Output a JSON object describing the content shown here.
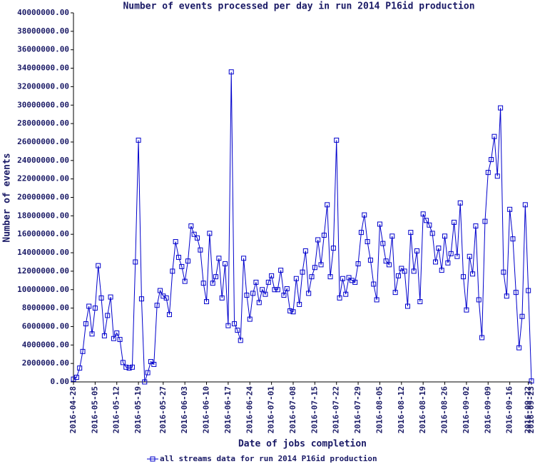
{
  "chart_data": {
    "type": "line",
    "title": "Number of events processed per day in run 2014 P16id production",
    "x_label": "Date of jobs completion",
    "y_label": "Number of events",
    "x": [
      "2016-04-28",
      "2016-04-29",
      "2016-04-30",
      "2016-05-01",
      "2016-05-02",
      "2016-05-03",
      "2016-05-04",
      "2016-05-05",
      "2016-05-06",
      "2016-05-07",
      "2016-05-08",
      "2016-05-09",
      "2016-05-10",
      "2016-05-11",
      "2016-05-12",
      "2016-05-13",
      "2016-05-14",
      "2016-05-15",
      "2016-05-16",
      "2016-05-17",
      "2016-05-18",
      "2016-05-19",
      "2016-05-20",
      "2016-05-21",
      "2016-05-22",
      "2016-05-23",
      "2016-05-24",
      "2016-05-25",
      "2016-05-26",
      "2016-05-27",
      "2016-05-28",
      "2016-05-29",
      "2016-05-30",
      "2016-05-31",
      "2016-06-01",
      "2016-06-02",
      "2016-06-03",
      "2016-06-04",
      "2016-06-05",
      "2016-06-06",
      "2016-06-07",
      "2016-06-08",
      "2016-06-09",
      "2016-06-10",
      "2016-06-11",
      "2016-06-12",
      "2016-06-13",
      "2016-06-14",
      "2016-06-15",
      "2016-06-16",
      "2016-06-17",
      "2016-06-18",
      "2016-06-19",
      "2016-06-20",
      "2016-06-21",
      "2016-06-22",
      "2016-06-23",
      "2016-06-24",
      "2016-06-25",
      "2016-06-26",
      "2016-06-27",
      "2016-06-28",
      "2016-06-29",
      "2016-06-30",
      "2016-07-01",
      "2016-07-02",
      "2016-07-03",
      "2016-07-04",
      "2016-07-05",
      "2016-07-06",
      "2016-07-07",
      "2016-07-08",
      "2016-07-09",
      "2016-07-10",
      "2016-07-11",
      "2016-07-12",
      "2016-07-13",
      "2016-07-14",
      "2016-07-15",
      "2016-07-16",
      "2016-07-17",
      "2016-07-18",
      "2016-07-19",
      "2016-07-20",
      "2016-07-21",
      "2016-07-22",
      "2016-07-23",
      "2016-07-24",
      "2016-07-25",
      "2016-07-26",
      "2016-07-27",
      "2016-07-28",
      "2016-07-29",
      "2016-07-30",
      "2016-07-31",
      "2016-08-01",
      "2016-08-02",
      "2016-08-03",
      "2016-08-04",
      "2016-08-05",
      "2016-08-06",
      "2016-08-07",
      "2016-08-08",
      "2016-08-09",
      "2016-08-10",
      "2016-08-11",
      "2016-08-12",
      "2016-08-13",
      "2016-08-14",
      "2016-08-15",
      "2016-08-16",
      "2016-08-17",
      "2016-08-18",
      "2016-08-19",
      "2016-08-20",
      "2016-08-21",
      "2016-08-22",
      "2016-08-23",
      "2016-08-24",
      "2016-08-25",
      "2016-08-26",
      "2016-08-27",
      "2016-08-28",
      "2016-08-29",
      "2016-08-30",
      "2016-08-31",
      "2016-09-01",
      "2016-09-02",
      "2016-09-03",
      "2016-09-04",
      "2016-09-05",
      "2016-09-06",
      "2016-09-07",
      "2016-09-08",
      "2016-09-09",
      "2016-09-10",
      "2016-09-11",
      "2016-09-12",
      "2016-09-13",
      "2016-09-14",
      "2016-09-15",
      "2016-09-16",
      "2016-09-17",
      "2016-09-18",
      "2016-09-19",
      "2016-09-20",
      "2016-09-21",
      "2016-09-22",
      "2016-09-23"
    ],
    "series": [
      {
        "name": "all streams data for run 2014 P16id production",
        "color": "#0000cc",
        "values": [
          300000,
          500000,
          1500000,
          3300000,
          6300000,
          8200000,
          5200000,
          8000000,
          12600000,
          9100000,
          5000000,
          7200000,
          9200000,
          4700000,
          5300000,
          4600000,
          2100000,
          1600000,
          1500000,
          1600000,
          13000000,
          26200000,
          9000000,
          0,
          1000000,
          2200000,
          1900000,
          8300000,
          9900000,
          9300000,
          9100000,
          7300000,
          12000000,
          15200000,
          13500000,
          12500000,
          10900000,
          13100000,
          16900000,
          16000000,
          15600000,
          14300000,
          10700000,
          8700000,
          16100000,
          10700000,
          11400000,
          13400000,
          9100000,
          12800000,
          6100000,
          33600000,
          6300000,
          5600000,
          4500000,
          13400000,
          9400000,
          6800000,
          9600000,
          10800000,
          8600000,
          10000000,
          9500000,
          10800000,
          11500000,
          10000000,
          10000000,
          12100000,
          9400000,
          10100000,
          7700000,
          7600000,
          11200000,
          8400000,
          11900000,
          14200000,
          9600000,
          11400000,
          12400000,
          15400000,
          12700000,
          15900000,
          19200000,
          11400000,
          14500000,
          26200000,
          9100000,
          11200000,
          9500000,
          11300000,
          11000000,
          10800000,
          12800000,
          16200000,
          18100000,
          15200000,
          13200000,
          10600000,
          8900000,
          17100000,
          15000000,
          13100000,
          12700000,
          15800000,
          9700000,
          11500000,
          12300000,
          12000000,
          8200000,
          16200000,
          12000000,
          14200000,
          8700000,
          18200000,
          17500000,
          17000000,
          16100000,
          13000000,
          14500000,
          12100000,
          15800000,
          12900000,
          13900000,
          17300000,
          13600000,
          19400000,
          11400000,
          7800000,
          13600000,
          11700000,
          16900000,
          8900000,
          4800000,
          17400000,
          22700000,
          24100000,
          26600000,
          22300000,
          29700000,
          11900000,
          9300000,
          18700000,
          15500000,
          9700000,
          3700000,
          7100000,
          19200000,
          9900000,
          100000
        ]
      }
    ],
    "xlim": [
      "2016-04-28",
      "2016-09-23"
    ],
    "xticks": [
      "2016-04-28",
      "2016-05-05",
      "2016-05-12",
      "2016-05-19",
      "2016-05-27",
      "2016-06-03",
      "2016-06-10",
      "2016-06-17",
      "2016-06-24",
      "2016-07-01",
      "2016-07-08",
      "2016-07-15",
      "2016-07-22",
      "2016-07-29",
      "2016-08-05",
      "2016-08-12",
      "2016-08-19",
      "2016-08-26",
      "2016-09-02",
      "2016-09-09",
      "2016-09-16",
      "2016-09-22",
      "2016-09-23"
    ],
    "ylim": [
      0,
      40000000
    ],
    "yticks": [
      {
        "value": 0,
        "label": "0.00"
      },
      {
        "value": 2000000,
        "label": "2000000.00"
      },
      {
        "value": 4000000,
        "label": "4000000.00"
      },
      {
        "value": 6000000,
        "label": "6000000.00"
      },
      {
        "value": 8000000,
        "label": "8000000.00"
      },
      {
        "value": 10000000,
        "label": "10000000.00"
      },
      {
        "value": 12000000,
        "label": "12000000.00"
      },
      {
        "value": 14000000,
        "label": "14000000.00"
      },
      {
        "value": 16000000,
        "label": "16000000.00"
      },
      {
        "value": 18000000,
        "label": "18000000.00"
      },
      {
        "value": 20000000,
        "label": "20000000.00"
      },
      {
        "value": 22000000,
        "label": "22000000.00"
      },
      {
        "value": 24000000,
        "label": "24000000.00"
      },
      {
        "value": 26000000,
        "label": "26000000.00"
      },
      {
        "value": 28000000,
        "label": "28000000.00"
      },
      {
        "value": 30000000,
        "label": "30000000.00"
      },
      {
        "value": 32000000,
        "label": "32000000.00"
      },
      {
        "value": 34000000,
        "label": "34000000.00"
      },
      {
        "value": 36000000,
        "label": "36000000.00"
      },
      {
        "value": 38000000,
        "label": "38000000.00"
      },
      {
        "value": 40000000,
        "label": "40000000.00"
      }
    ]
  }
}
